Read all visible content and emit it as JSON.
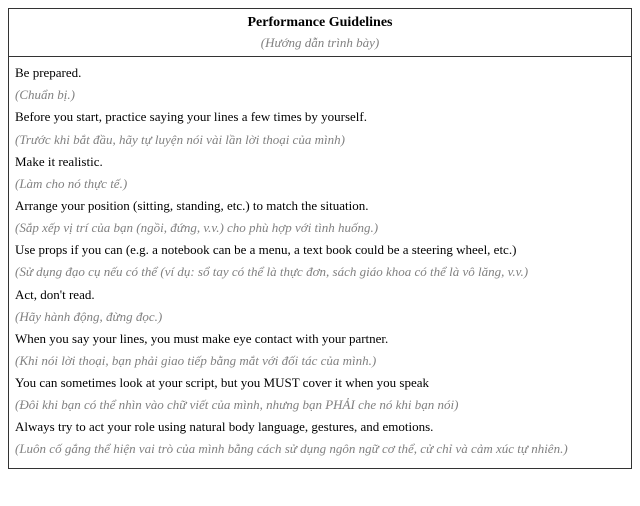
{
  "colors": {
    "text_primary": "#000000",
    "text_secondary": "#808080",
    "border": "#333333",
    "background": "#ffffff"
  },
  "typography": {
    "family": "Times New Roman, serif",
    "title_size_pt": 11,
    "line_size_pt": 10
  },
  "header": {
    "title": "Performance Guidelines",
    "subtitle": "(Hướng dẫn trình bày)"
  },
  "lines": [
    {
      "kind": "en",
      "text": "Be prepared."
    },
    {
      "kind": "vi",
      "text": "(Chuẩn bị.)"
    },
    {
      "kind": "en",
      "text": "Before you start, practice saying your lines a few times by yourself."
    },
    {
      "kind": "vi",
      "text": "(Trước khi bắt đầu, hãy tự luyện nói vài lần lời thoại của mình)"
    },
    {
      "kind": "en",
      "text": "Make it realistic."
    },
    {
      "kind": "vi",
      "text": "(Làm cho nó thực tế.)"
    },
    {
      "kind": "en",
      "text": "Arrange your position (sitting, standing, etc.) to match the situation."
    },
    {
      "kind": "vi",
      "text": "(Sắp xếp vị trí của bạn (ngồi, đứng, v.v.) cho phù hợp với tình huống.)"
    },
    {
      "kind": "en",
      "text": "Use props if you can (e.g. a notebook can be a menu, a text book could be a steering wheel, etc.)"
    },
    {
      "kind": "vi",
      "text": "(Sử dụng đạo cụ nếu có thể (ví dụ: sổ tay có thể là thực đơn, sách giáo khoa có thể là vô lăng, v.v.)"
    },
    {
      "kind": "en",
      "text": "Act, don't read."
    },
    {
      "kind": "vi",
      "text": "(Hãy hành động, đừng đọc.)"
    },
    {
      "kind": "en",
      "text": "When you say your lines, you must make eye contact with your partner."
    },
    {
      "kind": "vi",
      "text": "(Khi nói lời thoại, bạn phải giao tiếp bằng mắt với đối tác của mình.)"
    },
    {
      "kind": "en",
      "text": "You can sometimes look at your script, but you MUST cover it when you speak"
    },
    {
      "kind": "vi",
      "text": "(Đôi khi bạn có thể nhìn vào chữ viết của mình, nhưng bạn PHẢI che nó khi bạn nói)"
    },
    {
      "kind": "en",
      "text": "Always try to act your role using natural body language, gestures, and emotions."
    },
    {
      "kind": "vi",
      "text": "(Luôn cố gắng thể hiện vai trò của mình bằng cách sử dụng ngôn ngữ cơ thể, cử chỉ và cảm xúc tự nhiên.)"
    }
  ]
}
